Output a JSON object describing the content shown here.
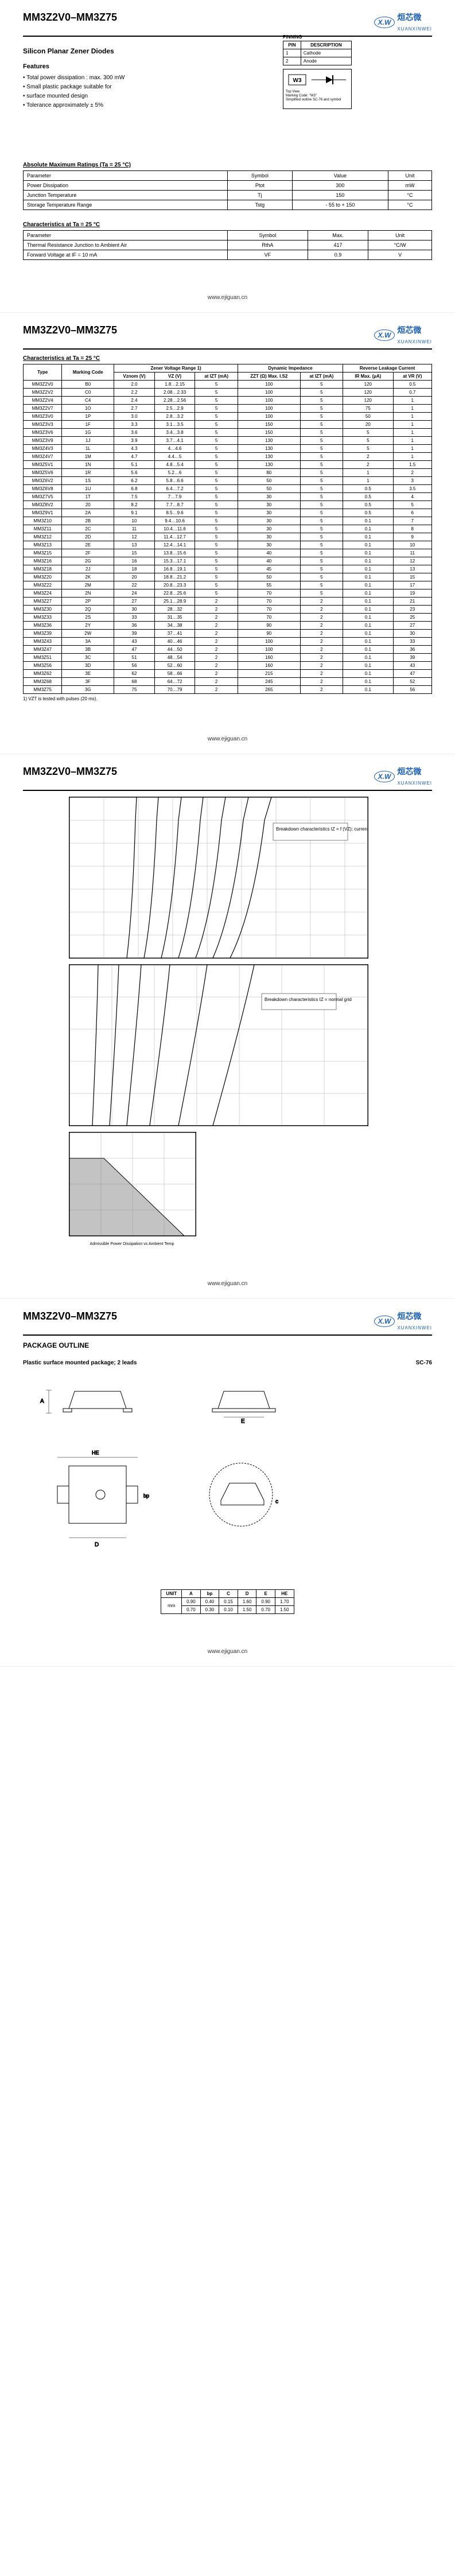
{
  "header": {
    "model": "MM3Z2V0–MM3Z75",
    "logo_short": "X.W",
    "logo_cn": "烜芯微",
    "logo_en": "XUANXINWEI"
  },
  "page1": {
    "subtitle": "Silicon Planar Zener Diodes",
    "features_title": "Features",
    "features": [
      "Total power dissipation : max. 300 mW",
      "Small plastic package suitable for",
      "surface mounted design",
      "Tolerance approximately ± 5%"
    ],
    "pinning_title": "PINNING",
    "pinning_headers": [
      "PIN",
      "DESCRIPTION"
    ],
    "pinning_rows": [
      [
        "1",
        "Cathode"
      ],
      [
        "2",
        "Anode"
      ]
    ],
    "sym_label": "W3",
    "sym_notes": [
      "Top View",
      "Marking Code: \"W3\"",
      "Simplified outline SC-76 and symbol"
    ],
    "abs_title": "Absolute Maximum Ratings (Ta = 25 °C)",
    "abs_headers": [
      "Parameter",
      "Symbol",
      "Value",
      "Unit"
    ],
    "abs_rows": [
      [
        "Power Dissipation",
        "Ptot",
        "300",
        "mW"
      ],
      [
        "Junction Temperature",
        "Tj",
        "150",
        "°C"
      ],
      [
        "Storage Temperature Range",
        "Tstg",
        "- 55 to + 150",
        "°C"
      ]
    ],
    "char_title": "Characteristics at Ta = 25 °C",
    "char_headers": [
      "Parameter",
      "Symbol",
      "Max.",
      "Unit"
    ],
    "char_rows": [
      [
        "Thermal Resistance Junction to Ambient Air",
        "RthA",
        "417",
        "°C/W"
      ],
      [
        "Forward Voltage at IF = 10 mA",
        "VF",
        "0.9",
        "V"
      ]
    ]
  },
  "page2": {
    "char_title": "Characteristics at Ta = 25 °C",
    "headers_top": [
      "Type",
      "Marking Code",
      "Zener Voltage Range 1)",
      "Dynamic Impedance",
      "Reverse Leakage Current"
    ],
    "headers_sub": [
      "",
      "",
      "Vznom (V)",
      "VZ (V)",
      "at IZT (mA)",
      "ZZT (Ω) Max. I.S2",
      "at IZT (mA)",
      "IR Max. (µA)",
      "at VR (V)"
    ],
    "rows": [
      [
        "MM3Z2V0",
        "B0",
        "2.0",
        "1.8…2.15",
        "5",
        "100",
        "5",
        "120",
        "0.5"
      ],
      [
        "MM3Z2V2",
        "C0",
        "2.2",
        "2.08…2.33",
        "5",
        "100",
        "5",
        "120",
        "0.7"
      ],
      [
        "MM3Z2V4",
        "C4",
        "2.4",
        "2.28…2.56",
        "5",
        "100",
        "5",
        "120",
        "1"
      ],
      [
        "MM3Z2V7",
        "1O",
        "2.7",
        "2.5…2.9",
        "5",
        "100",
        "5",
        "75",
        "1"
      ],
      [
        "MM3Z3V0",
        "1P",
        "3.0",
        "2.8…3.2",
        "5",
        "100",
        "5",
        "50",
        "1"
      ],
      [
        "MM3Z3V3",
        "1F",
        "3.3",
        "3.1…3.5",
        "5",
        "150",
        "5",
        "20",
        "1"
      ],
      [
        "MM3Z3V6",
        "1G",
        "3.6",
        "3.4…3.8",
        "5",
        "150",
        "5",
        "5",
        "1"
      ],
      [
        "MM3Z3V9",
        "1J",
        "3.9",
        "3.7…4.1",
        "5",
        "130",
        "5",
        "5",
        "1"
      ],
      [
        "MM3Z4V3",
        "1L",
        "4.3",
        "4…4.6",
        "5",
        "130",
        "5",
        "5",
        "1"
      ],
      [
        "MM3Z4V7",
        "1M",
        "4.7",
        "4.4…5",
        "5",
        "130",
        "5",
        "2",
        "1"
      ],
      [
        "MM3Z5V1",
        "1N",
        "5.1",
        "4.8…5.4",
        "5",
        "130",
        "5",
        "2",
        "1.5"
      ],
      [
        "MM3Z5V6",
        "1R",
        "5.6",
        "5.2…6",
        "5",
        "80",
        "5",
        "1",
        "2"
      ],
      [
        "MM3Z6V2",
        "1S",
        "6.2",
        "5.8…6.6",
        "5",
        "50",
        "5",
        "1",
        "3"
      ],
      [
        "MM3Z6V8",
        "1U",
        "6.8",
        "6.4…7.2",
        "5",
        "50",
        "5",
        "0.5",
        "3.5"
      ],
      [
        "MM3Z7V5",
        "1T",
        "7.5",
        "7…7.9",
        "5",
        "30",
        "5",
        "0.5",
        "4"
      ],
      [
        "MM3Z8V2",
        "20",
        "8.2",
        "7.7…8.7",
        "5",
        "30",
        "5",
        "0.5",
        "5"
      ],
      [
        "MM3Z9V1",
        "2A",
        "9.1",
        "8.5…9.6",
        "5",
        "30",
        "5",
        "0.5",
        "6"
      ],
      [
        "MM3Z10",
        "2B",
        "10",
        "9.4…10.6",
        "5",
        "30",
        "5",
        "0.1",
        "7"
      ],
      [
        "MM3Z11",
        "2C",
        "11",
        "10.4…11.6",
        "5",
        "30",
        "5",
        "0.1",
        "8"
      ],
      [
        "MM3Z12",
        "2D",
        "12",
        "11.4…12.7",
        "5",
        "30",
        "5",
        "0.1",
        "9"
      ],
      [
        "MM3Z13",
        "2E",
        "13",
        "12.4…14.1",
        "5",
        "30",
        "5",
        "0.1",
        "10"
      ],
      [
        "MM3Z15",
        "2F",
        "15",
        "13.8…15.6",
        "5",
        "40",
        "5",
        "0.1",
        "11"
      ],
      [
        "MM3Z16",
        "2G",
        "16",
        "15.3…17.1",
        "5",
        "40",
        "5",
        "0.1",
        "12"
      ],
      [
        "MM3Z18",
        "2J",
        "18",
        "16.8…19.1",
        "5",
        "45",
        "5",
        "0.1",
        "13"
      ],
      [
        "MM3Z20",
        "2K",
        "20",
        "18.8…21.2",
        "5",
        "50",
        "5",
        "0.1",
        "15"
      ],
      [
        "MM3Z22",
        "2M",
        "22",
        "20.8…23.3",
        "5",
        "55",
        "5",
        "0.1",
        "17"
      ],
      [
        "MM3Z24",
        "2N",
        "24",
        "22.8…25.6",
        "5",
        "70",
        "5",
        "0.1",
        "19"
      ],
      [
        "MM3Z27",
        "2P",
        "27",
        "25.1…28.9",
        "2",
        "70",
        "2",
        "0.1",
        "21"
      ],
      [
        "MM3Z30",
        "2Q",
        "30",
        "28…32",
        "2",
        "70",
        "2",
        "0.1",
        "23"
      ],
      [
        "MM3Z33",
        "2S",
        "33",
        "31…35",
        "2",
        "70",
        "2",
        "0.1",
        "25"
      ],
      [
        "MM3Z36",
        "2Y",
        "36",
        "34…38",
        "2",
        "90",
        "2",
        "0.1",
        "27"
      ],
      [
        "MM3Z39",
        "2W",
        "39",
        "37…41",
        "2",
        "90",
        "2",
        "0.1",
        "30"
      ],
      [
        "MM3Z43",
        "3A",
        "43",
        "40…46",
        "2",
        "100",
        "2",
        "0.1",
        "33"
      ],
      [
        "MM3Z47",
        "3B",
        "47",
        "44…50",
        "2",
        "100",
        "2",
        "0.1",
        "36"
      ],
      [
        "MM3Z51",
        "3C",
        "51",
        "48…54",
        "2",
        "160",
        "2",
        "0.1",
        "39"
      ],
      [
        "MM3Z56",
        "3D",
        "56",
        "52…60",
        "2",
        "160",
        "2",
        "0.1",
        "43"
      ],
      [
        "MM3Z62",
        "3E",
        "62",
        "58…66",
        "2",
        "215",
        "2",
        "0.1",
        "47"
      ],
      [
        "MM3Z68",
        "3F",
        "68",
        "64…72",
        "2",
        "245",
        "2",
        "0.1",
        "52"
      ],
      [
        "MM3Z75",
        "3G",
        "75",
        "70…79",
        "2",
        "265",
        "2",
        "0.1",
        "56"
      ]
    ],
    "note": "1) VZT is tested with pulses (20 ms)."
  },
  "page3": {
    "chart1_label": "Breakdown characteristics IZ = f (VZ); current scale",
    "chart2_label": "Breakdown characteristics IZ = normal grid",
    "chart3_label": "Admissible Power Dissipation vs Ambient Temp"
  },
  "page4": {
    "title": "PACKAGE OUTLINE",
    "desc": "Plastic surface mounted package; 2 leads",
    "desc_code": "SC-76",
    "dim_unit_label": "UNIT",
    "dim_unit": "mm",
    "dim_headers": [
      "A",
      "bp",
      "C",
      "D",
      "E",
      "HE"
    ],
    "dim_row1": [
      "0.90",
      "0.40",
      "0.15",
      "1.60",
      "0.90",
      "1.70"
    ],
    "dim_row2": [
      "0.70",
      "0.30",
      "0.10",
      "1.50",
      "0.70",
      "1.50"
    ]
  },
  "footer": {
    "url": "www.ejiguan.cn"
  }
}
